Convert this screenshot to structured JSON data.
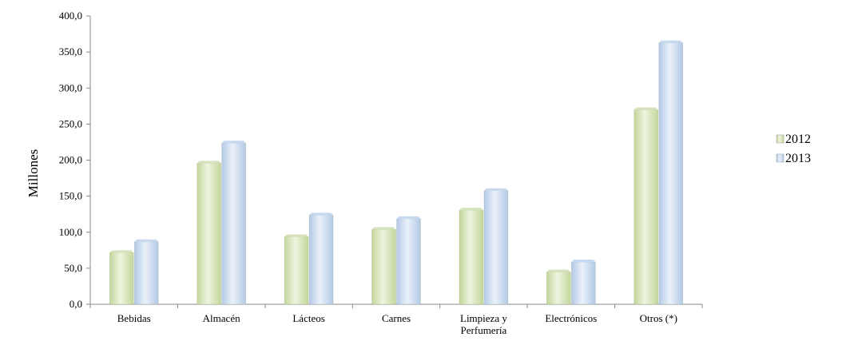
{
  "chart_data": {
    "type": "bar",
    "title": "",
    "xlabel": "",
    "ylabel": "Millones",
    "ylim": [
      0,
      400
    ],
    "yticks": [
      "0,0",
      "50,0",
      "100,0",
      "150,0",
      "200,0",
      "250,0",
      "300,0",
      "350,0",
      "400,0"
    ],
    "categories": [
      [
        "Bebidas"
      ],
      [
        "Almacén"
      ],
      [
        "Lácteos"
      ],
      [
        "Carnes"
      ],
      [
        "Limpieza y",
        "Perfumería"
      ],
      [
        "Electrónicos"
      ],
      [
        "Otros (*)"
      ]
    ],
    "series": [
      {
        "name": "2012",
        "values": [
          75,
          199,
          97,
          107,
          134,
          48,
          273
        ],
        "color": "#d6e3bc"
      },
      {
        "name": "2013",
        "values": [
          90,
          227,
          127,
          122,
          161,
          62,
          366
        ],
        "color": "#c6d9f1"
      }
    ],
    "grid": false,
    "legend": "right"
  }
}
